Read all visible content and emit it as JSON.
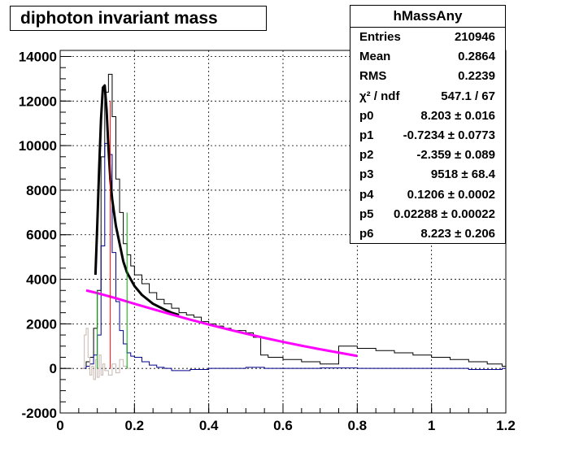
{
  "chart_data": {
    "type": "line",
    "title": "diphoton invariant mass",
    "x_ticks": [
      "0",
      "0.2",
      "0.4",
      "0.6",
      "0.8",
      "1",
      "1.2"
    ],
    "y_ticks": [
      "-2000",
      "0",
      "2000",
      "4000",
      "6000",
      "8000",
      "10000",
      "12000",
      "14000"
    ],
    "xlim": [
      0,
      1.2
    ],
    "ylim": [
      -2000,
      14200
    ],
    "grid": true,
    "series": [
      {
        "color": "#000000",
        "style": "step",
        "x": [
          0.06,
          0.07,
          0.08,
          0.09,
          0.1,
          0.11,
          0.12,
          0.13,
          0.14,
          0.15,
          0.16,
          0.17,
          0.18,
          0.19,
          0.2,
          0.22,
          0.24,
          0.26,
          0.28,
          0.3,
          0.32,
          0.34,
          0.36,
          0.38,
          0.4,
          0.42,
          0.44,
          0.46,
          0.48,
          0.5,
          0.52,
          0.54,
          0.56,
          0.6,
          0.65,
          0.7,
          0.75,
          0.8,
          0.85,
          0.9,
          0.95,
          1.0,
          1.05,
          1.1,
          1.15,
          1.19
        ],
        "values": [
          0,
          300,
          500,
          1800,
          3500,
          9500,
          12400,
          13200,
          11300,
          8500,
          7000,
          5600,
          5100,
          4600,
          4200,
          3800,
          3400,
          3100,
          2900,
          2700,
          2500,
          2400,
          2300,
          2100,
          2000,
          1900,
          1800,
          1700,
          1700,
          1600,
          1400,
          600,
          500,
          400,
          300,
          200,
          1000,
          900,
          800,
          700,
          600,
          500,
          400,
          300,
          200,
          100
        ]
      },
      {
        "color": "#00008b",
        "style": "step",
        "x": [
          0.06,
          0.07,
          0.08,
          0.09,
          0.1,
          0.11,
          0.12,
          0.13,
          0.14,
          0.15,
          0.16,
          0.17,
          0.18,
          0.19,
          0.2,
          0.22,
          0.24,
          0.26,
          0.28,
          0.3,
          0.35,
          0.4,
          0.45,
          0.5,
          0.55,
          0.6,
          0.7,
          0.8,
          0.9,
          1.0,
          1.1,
          1.19
        ],
        "values": [
          0,
          100,
          200,
          600,
          1500,
          5500,
          10100,
          9600,
          5200,
          3000,
          1700,
          1100,
          700,
          550,
          500,
          300,
          150,
          50,
          0,
          -100,
          -50,
          0,
          0,
          50,
          0,
          0,
          20,
          0,
          0,
          0,
          -50,
          0
        ]
      },
      {
        "color": "#c8b8b0",
        "style": "step",
        "x": [
          0.06,
          0.065,
          0.07,
          0.075,
          0.08,
          0.085,
          0.09,
          0.095,
          0.1,
          0.105,
          0.11,
          0.115,
          0.12,
          0.13,
          0.14,
          0.15,
          0.16,
          0.17,
          0.18
        ],
        "values": [
          0,
          1500,
          1800,
          500,
          -300,
          100,
          -500,
          400,
          -400,
          600,
          -300,
          200,
          -100,
          -300,
          200,
          -200,
          400,
          100,
          0
        ]
      },
      {
        "color": "#000000",
        "style": "fit",
        "x": [
          0.095,
          0.1,
          0.105,
          0.11,
          0.115,
          0.12,
          0.125,
          0.13,
          0.135,
          0.14,
          0.15,
          0.16,
          0.17,
          0.18,
          0.2,
          0.22,
          0.25,
          0.28,
          0.3,
          0.32
        ],
        "values": [
          4200,
          6500,
          9000,
          11200,
          12600,
          12700,
          11600,
          9900,
          8500,
          7600,
          6400,
          5600,
          4800,
          4300,
          3700,
          3300,
          2900,
          2650,
          2500,
          2400
        ]
      },
      {
        "color": "#ff00ff",
        "style": "fit",
        "x": [
          0.07,
          0.1,
          0.15,
          0.2,
          0.25,
          0.3,
          0.35,
          0.4,
          0.45,
          0.5,
          0.55,
          0.6,
          0.65,
          0.7,
          0.75,
          0.8
        ],
        "values": [
          3500,
          3380,
          3150,
          2900,
          2660,
          2420,
          2190,
          1970,
          1760,
          1560,
          1370,
          1190,
          1020,
          860,
          710,
          560
        ]
      }
    ],
    "vlines": [
      {
        "x": 0.1,
        "ymin": 0,
        "ymax": 3500,
        "color": "#00b000"
      },
      {
        "x": 0.135,
        "ymin": 0,
        "ymax": 12000,
        "color": "#ff0000"
      },
      {
        "x": 0.18,
        "ymin": 0,
        "ymax": 7000,
        "color": "#00b000"
      }
    ]
  },
  "stats": {
    "name": "hMassAny",
    "rows": [
      {
        "key": "Entries",
        "value": "210946"
      },
      {
        "key": "Mean",
        "value": "0.2864"
      },
      {
        "key": "RMS",
        "value": "0.2239"
      },
      {
        "key": "χ² / ndf",
        "value": "547.1 / 67"
      },
      {
        "key": "p0",
        "value": "8.203 ± 0.016"
      },
      {
        "key": "p1",
        "value": "-0.7234 ± 0.0773"
      },
      {
        "key": "p2",
        "value": "-2.359 ± 0.089"
      },
      {
        "key": "p3",
        "value": "9518 ± 68.4"
      },
      {
        "key": "p4",
        "value": "0.1206 ± 0.0002"
      },
      {
        "key": "p5",
        "value": "0.02288 ± 0.00022"
      },
      {
        "key": "p6",
        "value": "8.223 ± 0.206"
      }
    ]
  }
}
